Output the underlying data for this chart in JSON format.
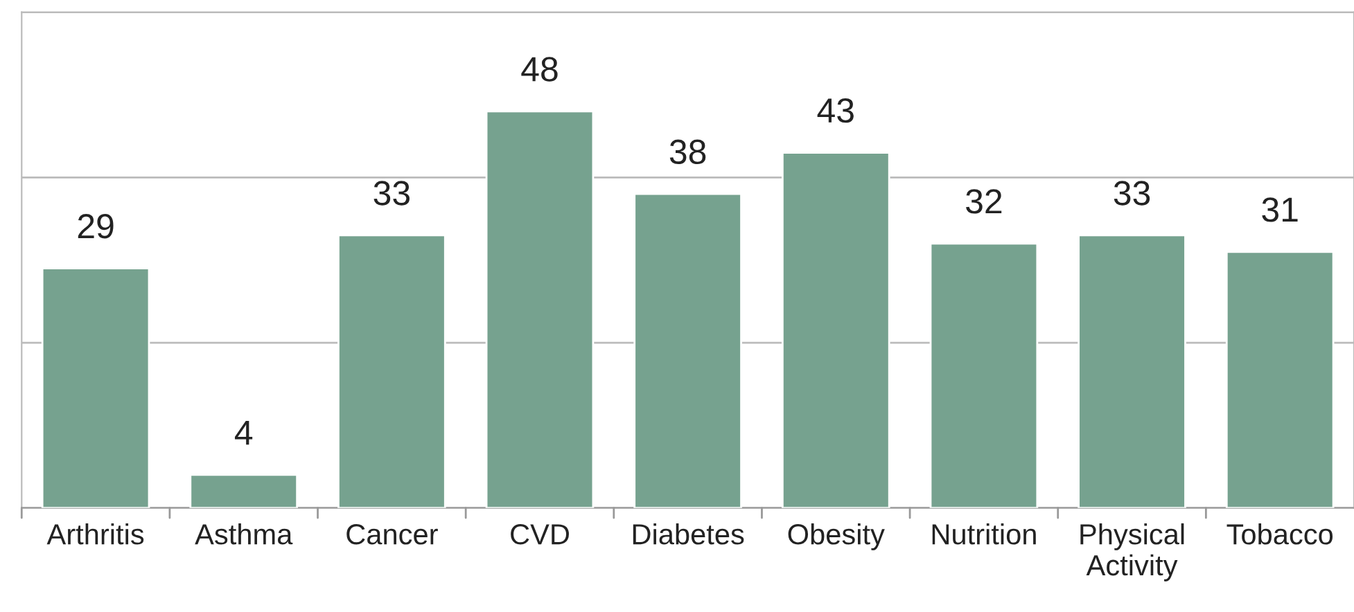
{
  "chart_data": {
    "type": "bar",
    "categories": [
      "Arthritis",
      "Asthma",
      "Cancer",
      "CVD",
      "Diabetes",
      "Obesity",
      "Nutrition",
      "Physical Activity",
      "Tobacco"
    ],
    "values": [
      29,
      4,
      33,
      48,
      38,
      43,
      32,
      33,
      31
    ],
    "color": "#76a28f",
    "ylim": [
      0,
      60
    ],
    "yticks": [
      {
        "value": 0,
        "label": null
      },
      {
        "value": 20,
        "label": null
      },
      {
        "value": 40,
        "label": null
      },
      {
        "value": 60,
        "label": null
      }
    ],
    "grid": "y",
    "tick_labels": "x",
    "data_labels": true
  }
}
